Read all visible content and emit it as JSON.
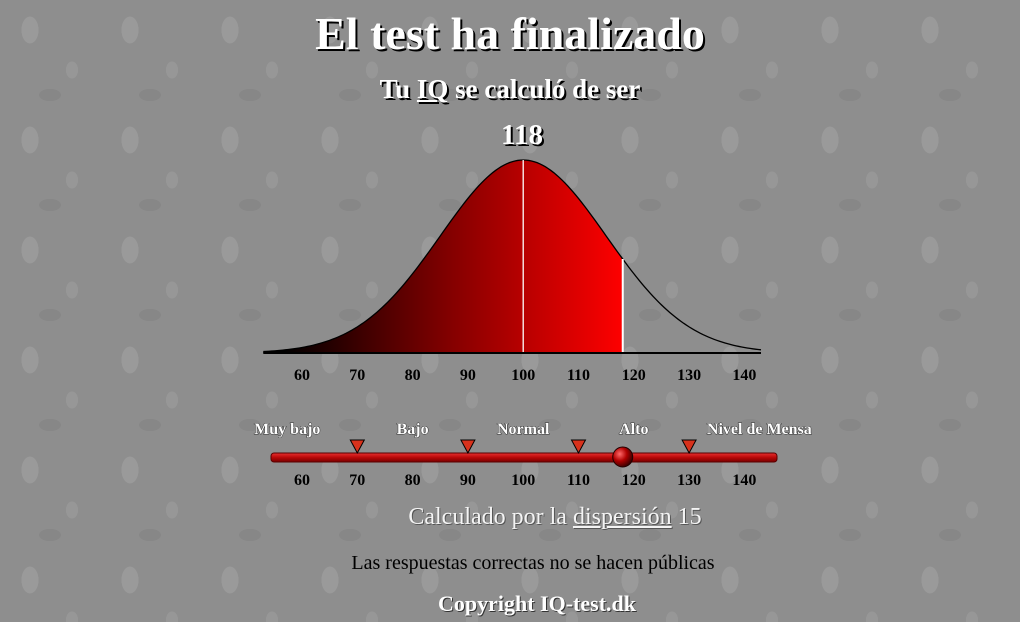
{
  "header": {
    "title": "El test ha finalizado",
    "subtitle_prefix": "Tu",
    "subtitle_link": "IQ",
    "subtitle_suffix": "se calculó de ser",
    "score": "118"
  },
  "chart_data": {
    "type": "area",
    "x_ticks": [
      60,
      70,
      80,
      90,
      100,
      110,
      120,
      130,
      140
    ],
    "xlim": [
      55,
      145
    ],
    "mean": 100,
    "dispersion": 15,
    "marked_value": 118,
    "fill_colors": {
      "from": "#000000",
      "to": "#ff0000"
    }
  },
  "scale": {
    "categories": [
      "Muy bajo",
      "Bajo",
      "Normal",
      "Alto",
      "Nivel de Mensa"
    ],
    "boundaries": [
      70,
      90,
      110,
      130
    ],
    "ticks": [
      60,
      70,
      80,
      90,
      100,
      110,
      120,
      130,
      140
    ],
    "marker_value": 118
  },
  "footer": {
    "disp_prefix": "Calculado por la",
    "disp_link": "dispersión",
    "disp_value": "15",
    "note": "Las respuestas correctas no se hacen públicas",
    "copyright": "Copyright IQ-test.dk"
  },
  "colors": {
    "bar": "#c81010",
    "marker": "#d8321c",
    "knob": "#8a0000"
  }
}
